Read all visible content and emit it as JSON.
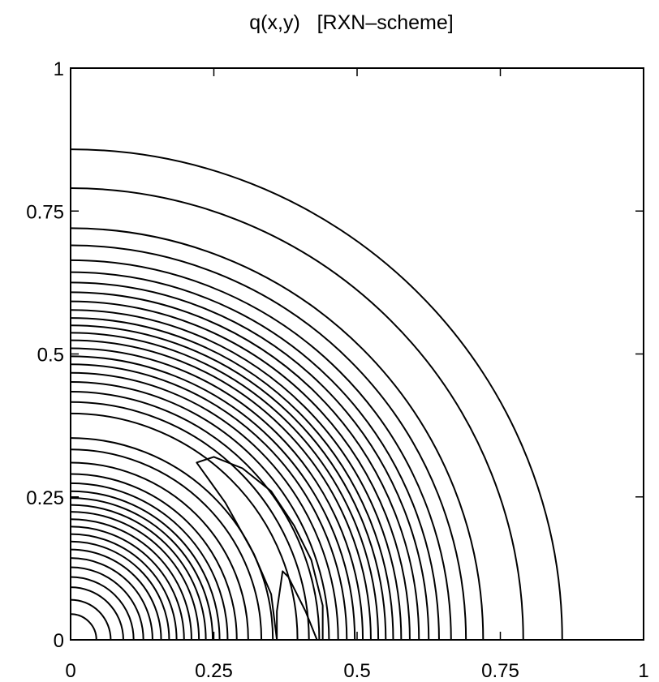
{
  "chart_data": {
    "type": "contour",
    "title": "q(x,y)   [RXN–scheme]",
    "xlim": [
      0,
      1
    ],
    "ylim": [
      0,
      1
    ],
    "xticks": [
      0,
      0.25,
      0.5,
      0.75,
      1
    ],
    "xtick_labels": [
      "0",
      "0.25",
      "0.5",
      "0.75",
      "1"
    ],
    "yticks": [
      0,
      0.25,
      0.5,
      0.75,
      1
    ],
    "ytick_labels": [
      "0",
      "0.25",
      "0.5",
      "0.75",
      "1"
    ],
    "grid": false,
    "contour_groups": [
      {
        "name": "inner",
        "radii": [
          0.045,
          0.07,
          0.092,
          0.11,
          0.127,
          0.143,
          0.158,
          0.172,
          0.185,
          0.198,
          0.211,
          0.224,
          0.236,
          0.248,
          0.26,
          0.274,
          0.29,
          0.31,
          0.333
        ]
      },
      {
        "name": "outer",
        "radii": [
          0.353,
          0.396,
          0.416,
          0.434,
          0.451,
          0.467,
          0.482,
          0.496,
          0.51,
          0.524,
          0.537,
          0.55,
          0.563,
          0.577,
          0.592,
          0.608,
          0.625,
          0.643,
          0.664,
          0.69,
          0.72,
          0.79,
          0.858
        ]
      }
    ],
    "closed_contours": [
      {
        "name": "lobe-upper",
        "points": [
          [
            0.22,
            0.31
          ],
          [
            0.25,
            0.32
          ],
          [
            0.3,
            0.3
          ],
          [
            0.35,
            0.26
          ],
          [
            0.39,
            0.2
          ],
          [
            0.42,
            0.14
          ],
          [
            0.44,
            0.06
          ],
          [
            0.44,
            0.0
          ],
          [
            0.36,
            0.0
          ],
          [
            0.35,
            0.08
          ],
          [
            0.32,
            0.15
          ],
          [
            0.27,
            0.24
          ]
        ]
      },
      {
        "name": "lobe-lower",
        "points": [
          [
            0.37,
            0.12
          ],
          [
            0.38,
            0.11
          ],
          [
            0.39,
            0.09
          ],
          [
            0.41,
            0.05
          ],
          [
            0.43,
            0.0
          ],
          [
            0.36,
            0.0
          ],
          [
            0.36,
            0.05
          ]
        ]
      }
    ]
  }
}
